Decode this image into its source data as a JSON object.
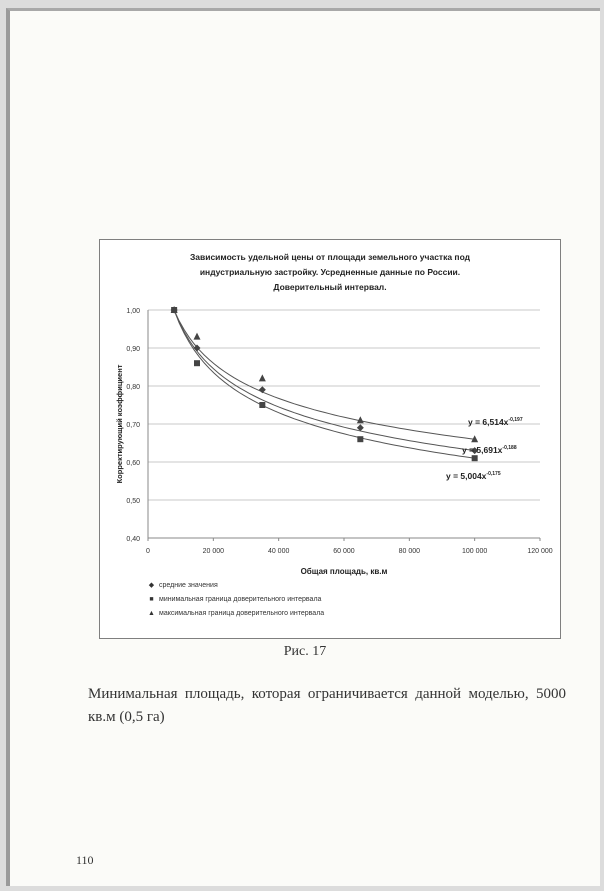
{
  "caption": "Рис. 17",
  "paragraph": "Минимальная площадь, которая ограничивается данной моделью, 5000 кв.м (0,5 га)",
  "page_number": "110",
  "chart_data": {
    "type": "scatter",
    "title_lines": [
      "Зависимость удельной цены от площади земельного участка под",
      "индустриальную застройку. Усредненные данные по России.",
      "Доверительный интервал."
    ],
    "xlabel": "Общая площадь, кв.м",
    "ylabel": "Корректирующий коэффициент",
    "xlim": [
      0,
      120000
    ],
    "ylim": [
      0.4,
      1.0
    ],
    "x_ticks": [
      0,
      20000,
      40000,
      60000,
      80000,
      100000,
      120000
    ],
    "x_tick_labels": [
      "0",
      "20 000",
      "40 000",
      "60 000",
      "80 000",
      "100 000",
      "120 000"
    ],
    "y_ticks": [
      0.4,
      0.5,
      0.6,
      0.7,
      0.8,
      0.9,
      1.0
    ],
    "y_tick_labels": [
      "0,40",
      "0,50",
      "0,60",
      "0,70",
      "0,80",
      "0,90",
      "1,00"
    ],
    "grid": true,
    "legend_position": "bottom",
    "series": [
      {
        "name": "средние значения",
        "marker": "diamond",
        "x": [
          8000,
          15000,
          35000,
          65000,
          100000
        ],
        "y": [
          1.0,
          0.9,
          0.79,
          0.69,
          0.63
        ]
      },
      {
        "name": "минимальная граница доверительного интервала",
        "marker": "square",
        "x": [
          8000,
          15000,
          35000,
          65000,
          100000
        ],
        "y": [
          1.0,
          0.86,
          0.75,
          0.66,
          0.61
        ]
      },
      {
        "name": "максимальная граница доверительного интервала",
        "marker": "triangle",
        "x": [
          8000,
          15000,
          35000,
          65000,
          100000
        ],
        "y": [
          1.0,
          0.93,
          0.82,
          0.71,
          0.66
        ]
      }
    ],
    "trendline_labels": [
      "y = 6,514x",
      "y = 5,691x",
      "y = 5,004x"
    ],
    "trendline_exponents": [
      "-0,197",
      "-0,188",
      "-0,175"
    ]
  }
}
